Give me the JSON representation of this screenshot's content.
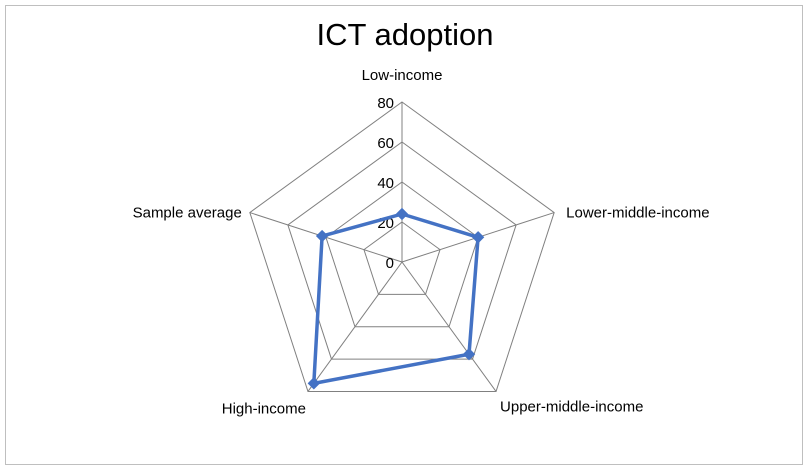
{
  "chart_data": {
    "type": "radar",
    "title": "ICT adoption",
    "categories": [
      "Low-income",
      "Lower-middle-income",
      "Upper-middle-income",
      "High-income",
      "Sample average"
    ],
    "ticks": [
      0,
      20,
      40,
      60,
      80
    ],
    "rlim": [
      0,
      80
    ],
    "grid": true,
    "legend": "none",
    "series": [
      {
        "values": [
          24,
          40,
          57,
          75,
          42
        ],
        "color": "#4472C4"
      }
    ],
    "grid_color": "#808080"
  }
}
